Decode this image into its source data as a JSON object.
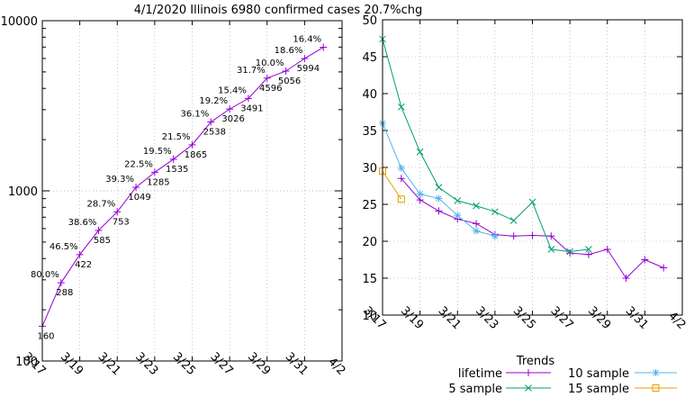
{
  "page_title": "4/1/2020 Illinois 6980 confirmed cases 20.7%chg",
  "colors": {
    "cases_line": "#9400d3",
    "lifetime": "#9400d3",
    "five_sample": "#009e73",
    "ten_sample": "#56b4e9",
    "fifteen_sample": "#e69f00",
    "axis": "#000000",
    "grid": "#a0a0a0"
  },
  "chart_data": [
    {
      "type": "line",
      "title": "4/1/2020 Illinois 6980 confirmed cases 20.7%chg",
      "scale": "log",
      "xlim": [
        17,
        33
      ],
      "ylim": [
        100,
        10000
      ],
      "grid": true,
      "ytick_labels": [
        "100",
        "1000",
        "10000"
      ],
      "xtick_labels": [
        "3/17",
        "3/19",
        "3/21",
        "3/23",
        "3/25",
        "3/27",
        "3/29",
        "3/31",
        "4/2"
      ],
      "x": [
        17,
        18,
        19,
        20,
        21,
        22,
        23,
        24,
        25,
        26,
        27,
        28,
        29,
        30,
        31,
        32
      ],
      "values": [
        160,
        288,
        422,
        585,
        753,
        1049,
        1285,
        1535,
        1865,
        2538,
        3026,
        3491,
        4596,
        5056,
        5994,
        6980
      ],
      "value_labels": [
        "160",
        "288",
        "422",
        "585",
        "753",
        "1049",
        "1285",
        "1535",
        "1865",
        "2538",
        "3026",
        "3491",
        "4596",
        "5056",
        "5994",
        ""
      ],
      "pct_labels": [
        "",
        "80.0%",
        "46.5%",
        "38.6%",
        "28.7%",
        "39.3%",
        "22.5%",
        "19.5%",
        "21.5%",
        "36.1%",
        "19.2%",
        "15.4%",
        "31.7%",
        "10.0%",
        "18.6%",
        "16.4%"
      ]
    },
    {
      "type": "line",
      "xlim": [
        17,
        33
      ],
      "ylim": [
        10,
        50
      ],
      "grid": true,
      "legend_title": "Trends",
      "legend_position": "bottom",
      "ytick_labels": [
        "10",
        "15",
        "20",
        "25",
        "30",
        "35",
        "40",
        "45",
        "50"
      ],
      "xtick_labels": [
        "3/17",
        "3/19",
        "3/21",
        "3/23",
        "3/25",
        "3/27",
        "3/29",
        "3/31",
        "4/2"
      ],
      "series": [
        {
          "name": "lifetime",
          "x": [
            18,
            19,
            20,
            21,
            22,
            23,
            24,
            25,
            26,
            27,
            28,
            29,
            30,
            31,
            32
          ],
          "values": [
            28.5,
            25.6,
            24.1,
            23.0,
            22.4,
            20.9,
            20.7,
            20.8,
            20.7,
            18.4,
            18.2,
            18.9,
            15.0,
            17.5,
            16.4
          ]
        },
        {
          "name": "5 sample",
          "x": [
            17,
            18,
            19,
            20,
            21,
            22,
            23,
            24,
            25,
            26,
            27,
            28
          ],
          "values": [
            47.4,
            38.2,
            32.1,
            27.3,
            25.5,
            24.8,
            24.0,
            22.8,
            25.3,
            18.9,
            18.6,
            18.9
          ]
        },
        {
          "name": "10 sample",
          "x": [
            17,
            18,
            19,
            20,
            21,
            22,
            23
          ],
          "values": [
            36.0,
            29.9,
            26.4,
            25.8,
            23.5,
            21.4,
            20.7
          ]
        },
        {
          "name": "15 sample",
          "x": [
            17,
            18
          ],
          "values": [
            29.5,
            25.7
          ]
        }
      ]
    }
  ]
}
